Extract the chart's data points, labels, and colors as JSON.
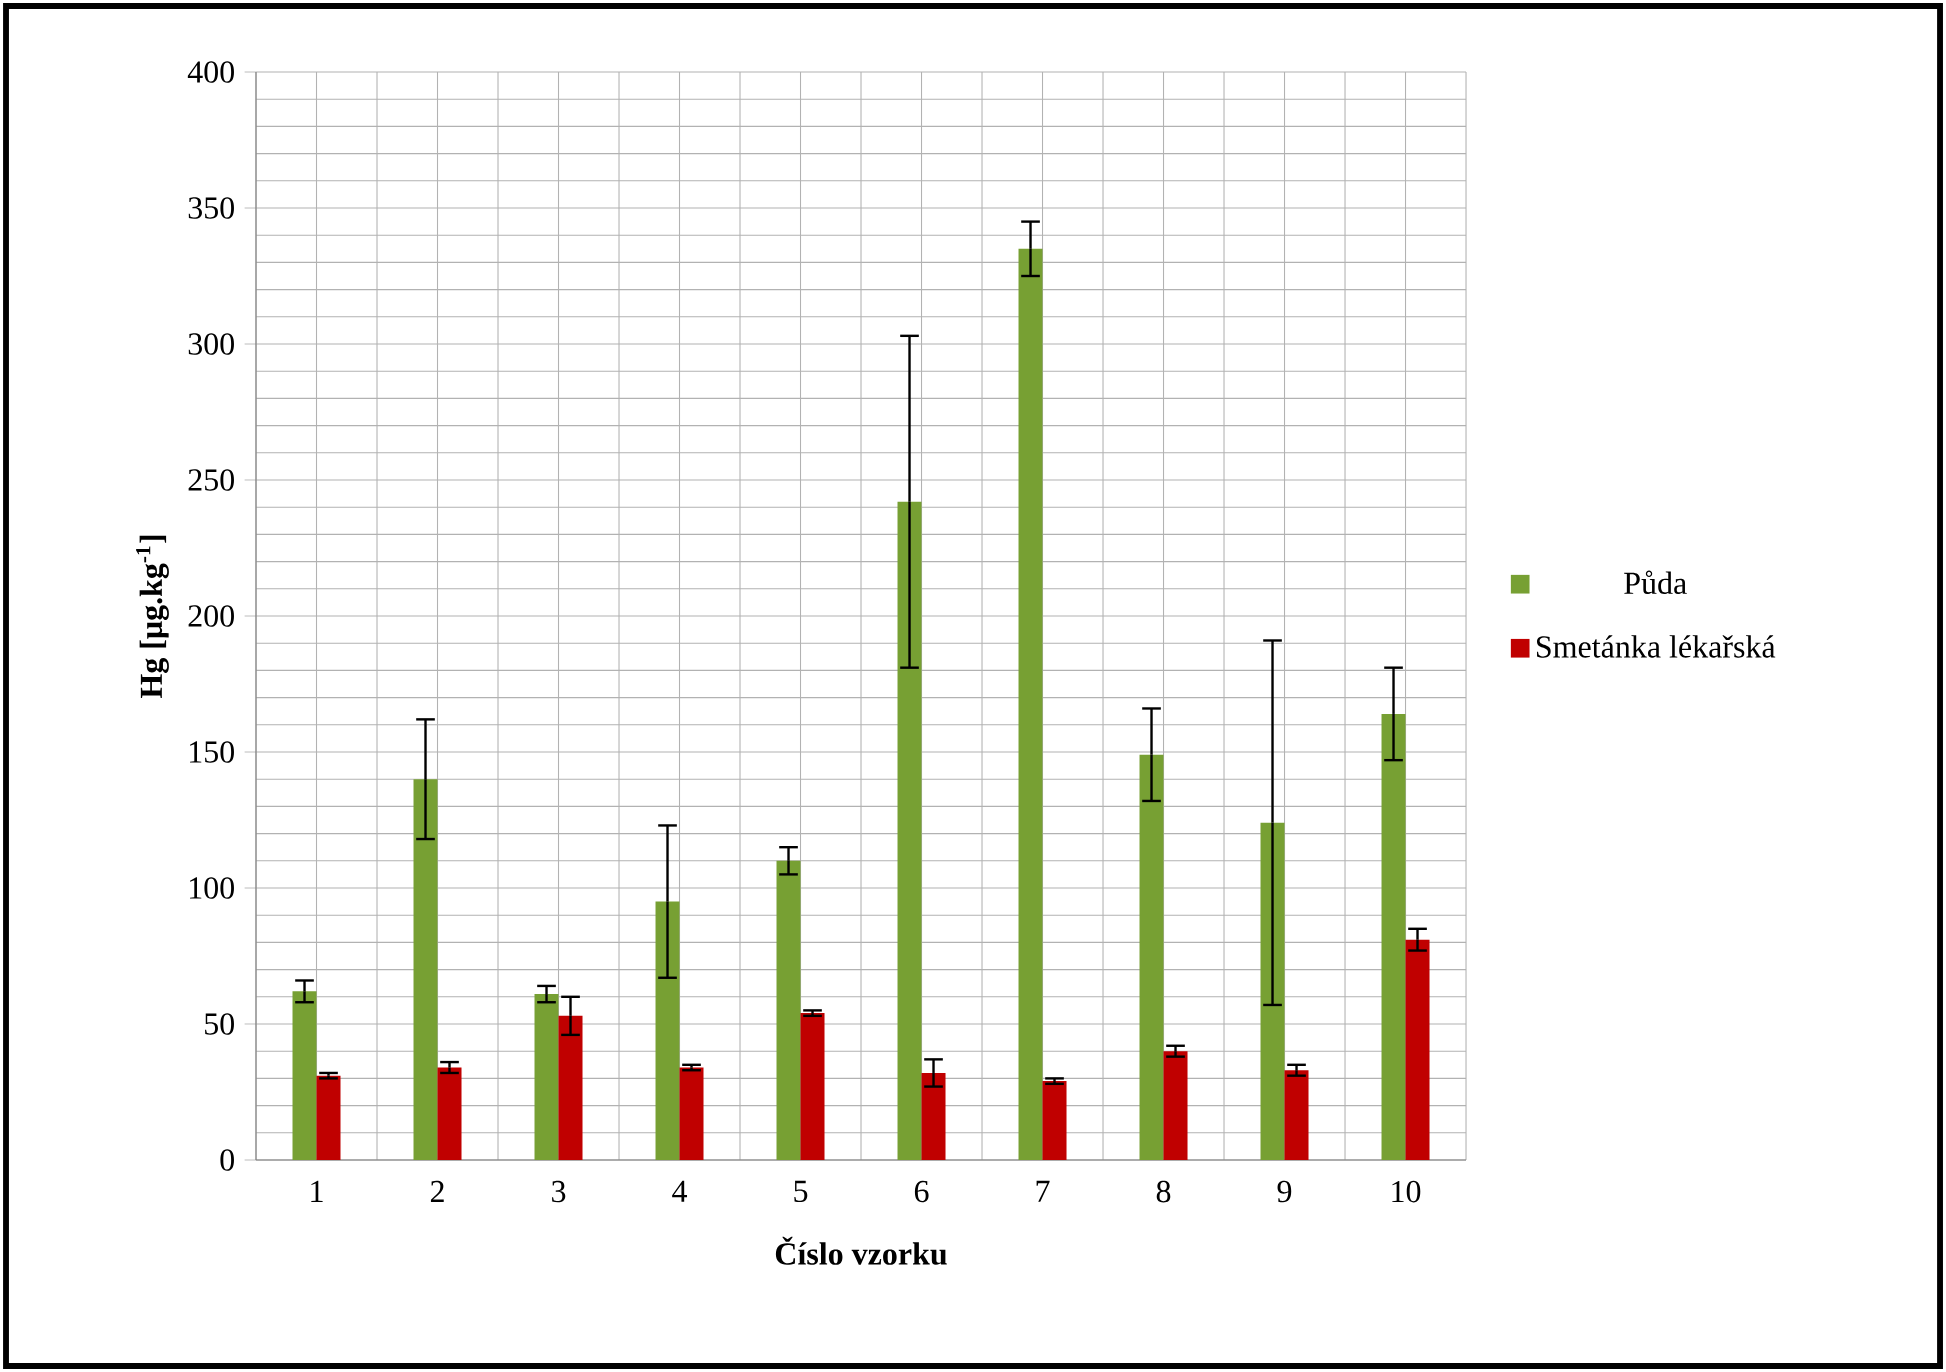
{
  "chart_data": {
    "type": "bar",
    "xlabel": "**Číslo vzorku**",
    "ylabel": "**Hg [μg.kg$^{-1}$]**",
    "categories": [
      "1",
      "2",
      "3",
      "4",
      "5",
      "6",
      "7",
      "8",
      "9",
      "10"
    ],
    "series": [
      {
        "name": "Půda",
        "color": "#77a033",
        "values": [
          62,
          140,
          61,
          95,
          110,
          242,
          335,
          149,
          124,
          164
        ],
        "errors": [
          4,
          22,
          3,
          28,
          5,
          61,
          10,
          17,
          67,
          17
        ]
      },
      {
        "name": "Smetánka lékařská",
        "color": "#c00000",
        "values": [
          31,
          34,
          53,
          34,
          54,
          32,
          29,
          40,
          33,
          81
        ],
        "errors": [
          1,
          2,
          7,
          1,
          1,
          5,
          1,
          2,
          2,
          4
        ]
      }
    ],
    "ylim": [
      0,
      400
    ],
    "yticks": [
      0,
      50,
      100,
      150,
      200,
      250,
      300,
      350,
      400
    ],
    "grid": true,
    "legend": "right"
  }
}
